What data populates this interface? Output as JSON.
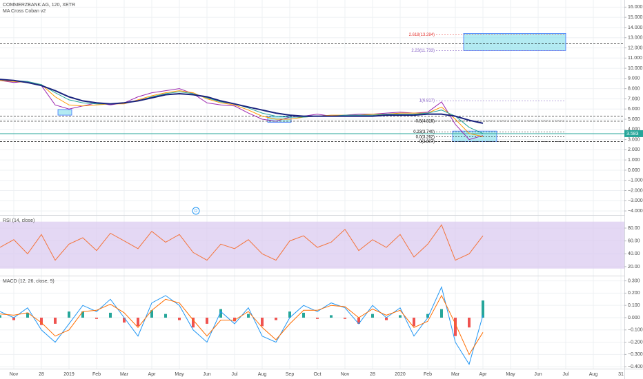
{
  "chart_data": [
    {
      "type": "line",
      "title": "COMMERZBANK AG, 120, XETR",
      "subtitle": "MA Cross Coban v2",
      "marker_label": "D",
      "x": [
        -0.5,
        0,
        0.5,
        1,
        1.5,
        2,
        2.5,
        3,
        3.5,
        4,
        4.5,
        5,
        5.5,
        6,
        6.5,
        7,
        7.5,
        8,
        8.5,
        9,
        9.5,
        10,
        10.5,
        11,
        11.5,
        12,
        12.5,
        13,
        13.5,
        14,
        14.5,
        15,
        15.5,
        16,
        16.5,
        17
      ],
      "series": [
        {
          "color": "#9c27b0",
          "values": [
            8.8,
            8.6,
            8.7,
            8.3,
            6.4,
            6.0,
            6.3,
            6.6,
            6.4,
            6.6,
            7.2,
            7.6,
            7.8,
            8.0,
            7.5,
            6.6,
            6.4,
            6.3,
            5.6,
            5.0,
            4.8,
            5.2,
            5.3,
            5.5,
            5.3,
            5.4,
            5.5,
            5.5,
            5.6,
            5.7,
            5.6,
            5.7,
            6.7,
            4.5,
            3.0,
            3.4
          ]
        },
        {
          "color": "#ff9800",
          "values": [
            8.8,
            8.7,
            8.6,
            8.4,
            7.2,
            6.4,
            6.3,
            6.4,
            6.5,
            6.5,
            6.9,
            7.3,
            7.6,
            7.8,
            7.6,
            7.0,
            6.6,
            6.4,
            5.9,
            5.3,
            5.0,
            5.0,
            5.2,
            5.3,
            5.4,
            5.4,
            5.4,
            5.5,
            5.5,
            5.6,
            5.6,
            5.6,
            6.2,
            5.0,
            3.6,
            3.3
          ]
        },
        {
          "color": "#26a69a",
          "values": [
            8.9,
            8.8,
            8.7,
            8.4,
            7.6,
            6.9,
            6.6,
            6.5,
            6.5,
            6.6,
            6.8,
            7.2,
            7.5,
            7.7,
            7.5,
            7.1,
            6.7,
            6.5,
            6.1,
            5.6,
            5.3,
            5.2,
            5.2,
            5.3,
            5.3,
            5.4,
            5.4,
            5.4,
            5.5,
            5.5,
            5.5,
            5.6,
            5.9,
            5.3,
            4.2,
            3.6
          ]
        },
        {
          "color": "#1a237e",
          "values": [
            8.9,
            8.8,
            8.6,
            8.3,
            7.8,
            7.2,
            6.8,
            6.6,
            6.5,
            6.6,
            6.8,
            7.1,
            7.4,
            7.5,
            7.4,
            7.2,
            6.8,
            6.5,
            6.2,
            5.9,
            5.6,
            5.4,
            5.3,
            5.3,
            5.3,
            5.3,
            5.3,
            5.3,
            5.4,
            5.4,
            5.4,
            5.5,
            5.5,
            5.3,
            4.9,
            4.6
          ]
        }
      ],
      "levels": [
        {
          "value": 12.4,
          "color": "#000000",
          "dashed": true
        },
        {
          "value": 5.3,
          "color": "#000000",
          "dashed": true
        },
        {
          "value": 4.8,
          "color": "#000000",
          "dashed": true
        },
        {
          "value": 2.8,
          "color": "#000000",
          "dashed": true
        },
        {
          "value": 3.583,
          "color": "#26a69a",
          "dashed": false,
          "label": "3.583"
        }
      ],
      "fib": [
        {
          "label": "2.618(13.284)",
          "value": 13.284,
          "color": "#e53935"
        },
        {
          "label": "2.23(11.733)",
          "value": 11.733,
          "color": "#7e57c2"
        },
        {
          "label": "1(6.817)",
          "value": 6.817,
          "color": "#7e57c2"
        },
        {
          "label": "0.5(4.819)",
          "value": 4.819,
          "color": "#000000"
        },
        {
          "label": "0.23(3.740)",
          "value": 3.74,
          "color": "#000000"
        },
        {
          "label": "0.0(3.262)",
          "value": 3.262,
          "color": "#000000"
        },
        {
          "label": "0(2.807)",
          "value": 2.807,
          "color": "#000000"
        }
      ],
      "boxes": [
        {
          "x0": 16.3,
          "x1": 20,
          "y0": 11.74,
          "y1": 13.43
        },
        {
          "x0": 15.9,
          "x1": 17.5,
          "y0": 2.82,
          "y1": 3.84
        },
        {
          "x0": 1.6,
          "x1": 2.1,
          "y0": 5.4,
          "y1": 5.95
        },
        {
          "x0": 9.2,
          "x1": 10.05,
          "y0": 4.7,
          "y1": 5.3
        }
      ],
      "ylim": [
        -4.4,
        16.7
      ],
      "yticks": [
        {
          "value": 16,
          "label": "16.000"
        },
        {
          "value": 15,
          "label": "15.000"
        },
        {
          "value": 14,
          "label": "14.000"
        },
        {
          "value": 13,
          "label": "13.000"
        },
        {
          "value": 12,
          "label": "12.000"
        },
        {
          "value": 11,
          "label": "11.000"
        },
        {
          "value": 10,
          "label": "10.000"
        },
        {
          "value": 9,
          "label": "9.000"
        },
        {
          "value": 8,
          "label": "8.000"
        },
        {
          "value": 7,
          "label": "7.000"
        },
        {
          "value": 6,
          "label": "6.000"
        },
        {
          "value": 5,
          "label": "5.000"
        },
        {
          "value": 4,
          "label": "4.000"
        },
        {
          "value": 3,
          "label": "3.000"
        },
        {
          "value": 2,
          "label": "2.000"
        },
        {
          "value": 1,
          "label": "1.000"
        },
        {
          "value": 0,
          "label": "0.000"
        },
        {
          "value": -1,
          "label": "−1.000"
        },
        {
          "value": -2,
          "label": "−2.000"
        },
        {
          "value": -3,
          "label": "−3.000"
        },
        {
          "value": -4,
          "label": "−4.000"
        }
      ]
    },
    {
      "type": "line",
      "title": "RSI (14, close)",
      "x": [
        -0.5,
        0,
        0.5,
        1,
        1.5,
        2,
        2.5,
        3,
        3.5,
        4,
        4.5,
        5,
        5.5,
        6,
        6.5,
        7,
        7.5,
        8,
        8.5,
        9,
        9.5,
        10,
        10.5,
        11,
        11.5,
        12,
        12.5,
        13,
        13.5,
        14,
        14.5,
        15,
        15.5,
        16,
        16.5,
        17
      ],
      "series": [
        {
          "color": "#f4743b",
          "values": [
            50,
            62,
            40,
            70,
            30,
            55,
            65,
            45,
            72,
            60,
            48,
            75,
            58,
            70,
            42,
            30,
            55,
            48,
            62,
            40,
            30,
            60,
            68,
            50,
            58,
            78,
            45,
            62,
            50,
            70,
            35,
            55,
            85,
            30,
            40,
            68
          ]
        }
      ],
      "band": [
        17,
        90
      ],
      "band_color": "#d8c8ef",
      "ylim": [
        6,
        99.3
      ],
      "yticks": [
        {
          "value": 80,
          "label": "80.00"
        },
        {
          "value": 60,
          "label": "60.00"
        },
        {
          "value": 40,
          "label": "40.00"
        },
        {
          "value": 20,
          "label": "20.00"
        }
      ]
    },
    {
      "type": "line",
      "title": "MACD (12, 26, close, 9)",
      "x": [
        -0.5,
        0,
        0.5,
        1,
        1.5,
        2,
        2.5,
        3,
        3.5,
        4,
        4.5,
        5,
        5.5,
        6,
        6.5,
        7,
        7.5,
        8,
        8.5,
        9,
        9.5,
        10,
        10.5,
        11,
        11.5,
        12,
        12.5,
        13,
        13.5,
        14,
        14.5,
        15,
        15.5,
        16,
        16.5,
        17
      ],
      "series": [
        {
          "kind": "bar",
          "color": "#26a69a",
          "negative_color": "#ef5350",
          "values": [
            0.02,
            -0.02,
            0.04,
            -0.06,
            -0.05,
            0.05,
            0.05,
            -0.01,
            0.04,
            -0.04,
            -0.07,
            0.06,
            0.03,
            -0.02,
            -0.08,
            -0.05,
            0.07,
            -0.03,
            0.03,
            -0.07,
            -0.02,
            0.05,
            0.04,
            -0.01,
            0.02,
            -0.01,
            -0.05,
            0.03,
            -0.02,
            0.02,
            -0.07,
            0.03,
            0.07,
            -0.15,
            -0.08,
            0.14
          ]
        },
        {
          "kind": "line",
          "color": "#2196f3",
          "values": [
            0.05,
            0.0,
            0.08,
            -0.1,
            -0.2,
            -0.05,
            0.1,
            0.05,
            0.15,
            0.0,
            -0.15,
            0.12,
            0.18,
            0.1,
            -0.1,
            -0.2,
            0.05,
            -0.05,
            0.08,
            -0.15,
            -0.2,
            0.0,
            0.1,
            0.05,
            0.12,
            0.08,
            -0.05,
            0.1,
            0.0,
            0.08,
            -0.15,
            0.0,
            0.25,
            -0.2,
            -0.38,
            0.02
          ]
        },
        {
          "kind": "line",
          "color": "#ff6d00",
          "values": [
            0.03,
            0.02,
            0.04,
            -0.04,
            -0.15,
            -0.1,
            0.05,
            0.06,
            0.11,
            0.04,
            -0.08,
            0.06,
            0.15,
            0.12,
            -0.02,
            -0.15,
            -0.02,
            -0.02,
            0.05,
            -0.08,
            -0.18,
            -0.05,
            0.06,
            0.06,
            0.1,
            0.09,
            0.0,
            0.07,
            0.02,
            0.06,
            -0.08,
            -0.03,
            0.18,
            -0.05,
            -0.3,
            -0.12
          ]
        }
      ],
      "ylim": [
        -0.416,
        0.337
      ],
      "yticks": [
        {
          "value": 0.3,
          "label": "0.300"
        },
        {
          "value": 0.2,
          "label": "0.200"
        },
        {
          "value": 0.1,
          "label": "0.100"
        },
        {
          "value": 0,
          "label": "0.000"
        },
        {
          "value": -0.1,
          "label": "−0.100"
        },
        {
          "value": -0.2,
          "label": "−0.200"
        },
        {
          "value": -0.3,
          "label": "−0.300"
        },
        {
          "value": -0.4,
          "label": "−0.400"
        }
      ],
      "xlim": [
        -0.5,
        22.125
      ],
      "xticks": [
        {
          "value": 0,
          "label": "Nov"
        },
        {
          "value": 1,
          "label": "28"
        },
        {
          "value": 2,
          "label": "2019"
        },
        {
          "value": 3,
          "label": "Feb"
        },
        {
          "value": 4,
          "label": "Mar"
        },
        {
          "value": 5,
          "label": "Apr"
        },
        {
          "value": 6,
          "label": "May"
        },
        {
          "value": 7,
          "label": "Jun"
        },
        {
          "value": 8,
          "label": "Jul"
        },
        {
          "value": 9,
          "label": "Aug"
        },
        {
          "value": 10,
          "label": "Sep"
        },
        {
          "value": 11,
          "label": "Oct"
        },
        {
          "value": 12,
          "label": "Nov"
        },
        {
          "value": 13,
          "label": "28"
        },
        {
          "value": 14,
          "label": "2020"
        },
        {
          "value": 15,
          "label": "Feb"
        },
        {
          "value": 16,
          "label": "Mar"
        },
        {
          "value": 17,
          "label": "Apr"
        },
        {
          "value": 18,
          "label": "May"
        },
        {
          "value": 19,
          "label": "Jun"
        },
        {
          "value": 20,
          "label": "Jul"
        },
        {
          "value": 21,
          "label": "Aug"
        },
        {
          "value": 22,
          "label": "31"
        }
      ]
    }
  ]
}
